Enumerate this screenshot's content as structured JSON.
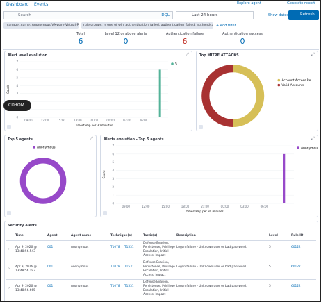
{
  "nav": {
    "tabs": [
      "Dashboard",
      "Events"
    ],
    "actions": [
      "Explore agent",
      "Generate report"
    ]
  },
  "search": {
    "placeholder": "Search",
    "language": "DQL",
    "date_range": "Last 24 hours",
    "show_dates": "Show dates",
    "refresh": "Refresh"
  },
  "filters": {
    "pills": [
      "manager.name: Anonymous-VMware-Virtual-Platform",
      "rule.groups: is one of win_authentication_failed, authentication_failed, authentication_failures"
    ],
    "add": "+ Add filter"
  },
  "stats": [
    {
      "label": "Total",
      "value": 6,
      "color": "#006bb4"
    },
    {
      "label": "Level 12 or above alerts",
      "value": 0,
      "color": "#006bb4"
    },
    {
      "label": "Authentication failure",
      "value": 6,
      "color": "#bd271e"
    },
    {
      "label": "Authentication success",
      "value": 0,
      "color": "#006bb4"
    }
  ],
  "charts": [
    {
      "type": "bar",
      "title": "Alert level evolution",
      "x_label": "timestamp per 30 minutes",
      "y_label": "Count",
      "categories": [
        "09:00",
        "12:00",
        "15:00",
        "18:00",
        "21:00",
        "00:00",
        "03:00",
        "06:00",
        null
      ],
      "series": [
        {
          "name": "5",
          "color": "#54b399",
          "values": [
            0,
            0,
            0,
            0,
            0,
            0,
            0,
            0,
            6
          ]
        }
      ],
      "ylim": [
        0,
        7
      ],
      "yticks": [
        0,
        1,
        2,
        3,
        4,
        5,
        6,
        7
      ],
      "grid": true
    },
    {
      "type": "pie",
      "title": "Top MITRE ATT&CKS",
      "donut": true,
      "categories": [
        "Account Access Re...",
        "Valid Accounts"
      ],
      "values": [
        6,
        6
      ],
      "colors": [
        "#d6bf57",
        "#a83232"
      ]
    },
    {
      "type": "pie",
      "title": "Top 5 agents",
      "donut": true,
      "categories": [
        "Anonymous"
      ],
      "values": [
        6
      ],
      "colors": [
        "#9749c9"
      ]
    },
    {
      "type": "bar",
      "title": "Alerts evolution - Top 5 agents",
      "x_label": "timestamp per 30 minutes",
      "y_label": "Count",
      "categories": [
        "09:00",
        "12:00",
        "15:00",
        "18:00",
        "21:00",
        "00:00",
        "03:00",
        "06:00",
        null
      ],
      "series": [
        {
          "name": "Anonymous",
          "color": "#9749c9",
          "values": [
            0,
            0,
            0,
            0,
            0,
            0,
            0,
            0,
            6
          ]
        }
      ],
      "ylim": [
        0,
        7
      ],
      "yticks": [
        0,
        1,
        2,
        3,
        4,
        5,
        6,
        7
      ],
      "grid": true
    }
  ],
  "overlay": "CDROM",
  "table": {
    "title": "Security Alerts",
    "columns": [
      "Time",
      "Agent",
      "Agent name",
      "Technique(s)",
      "Tactic(s)",
      "Description",
      "Level",
      "Rule ID"
    ],
    "rows": [
      [
        "Apr 9, 2026 @ 13:48:56.543",
        "001",
        "Anonymous",
        [
          "T1078",
          "T1531"
        ],
        "Defense Evasion, Persistence, Privilege Escalation, Initial Access, Impact",
        "Logon failure - Unknown user or bad password.",
        5,
        60122
      ],
      [
        "Apr 9, 2026 @ 13:48:56.193",
        "001",
        "Anonymous",
        [
          "T1078",
          "T1531"
        ],
        "Defense Evasion, Persistence, Privilege Escalation, Initial Access, Impact",
        "Logon failure - Unknown user or bad password.",
        5,
        60122
      ],
      [
        "Apr 9, 2026 @ 13:48:56.665",
        "001",
        "Anonymous",
        [
          "T1078",
          "T1531"
        ],
        "Defense Evasion, Persistence, Privilege Escalation, Initial Access, Impact",
        "Logon failure - Unknown user or bad password.",
        5,
        60122
      ]
    ]
  }
}
